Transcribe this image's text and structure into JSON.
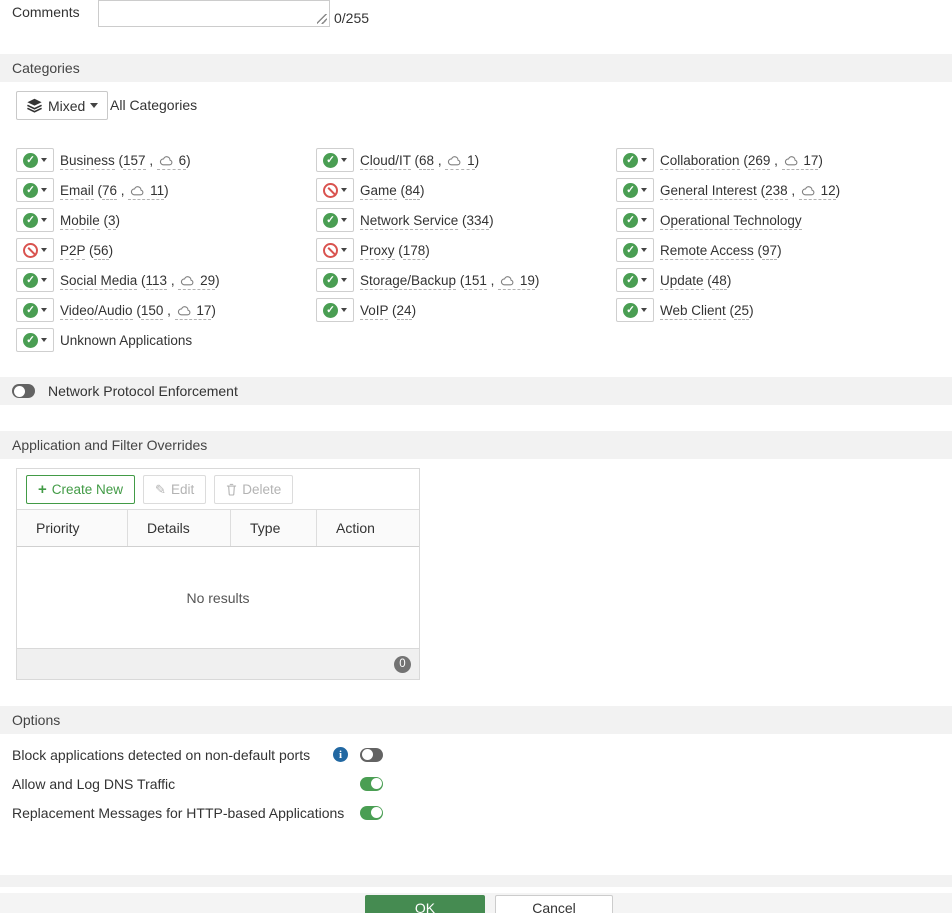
{
  "comments": {
    "label": "Comments",
    "value": "",
    "counter": "0/255"
  },
  "categories": {
    "header": "Categories",
    "mixed_label": "Mixed",
    "all_label": "All Categories",
    "items": [
      {
        "name": "Business",
        "status": "allow",
        "count": 157,
        "cloud": 6,
        "col": 0
      },
      {
        "name": "Email",
        "status": "allow",
        "count": 76,
        "cloud": 11,
        "col": 0
      },
      {
        "name": "Mobile",
        "status": "allow",
        "count": 3,
        "cloud": null,
        "col": 0
      },
      {
        "name": "P2P",
        "status": "block",
        "count": 56,
        "cloud": null,
        "col": 0
      },
      {
        "name": "Social Media",
        "status": "allow",
        "count": 113,
        "cloud": 29,
        "col": 0
      },
      {
        "name": "Video/Audio",
        "status": "allow",
        "count": 150,
        "cloud": 17,
        "col": 0
      },
      {
        "name": "Unknown Applications",
        "status": "allow",
        "count": null,
        "cloud": null,
        "col": 0,
        "plain": true
      },
      {
        "name": "Cloud/IT",
        "status": "allow",
        "count": 68,
        "cloud": 1,
        "col": 1
      },
      {
        "name": "Game",
        "status": "block",
        "count": 84,
        "cloud": null,
        "col": 1
      },
      {
        "name": "Network Service",
        "status": "allow",
        "count": 334,
        "cloud": null,
        "col": 1
      },
      {
        "name": "Proxy",
        "status": "block",
        "count": 178,
        "cloud": null,
        "col": 1
      },
      {
        "name": "Storage/Backup",
        "status": "allow",
        "count": 151,
        "cloud": 19,
        "col": 1
      },
      {
        "name": "VoIP",
        "status": "allow",
        "count": 24,
        "cloud": null,
        "col": 1
      },
      {
        "name": "Collaboration",
        "status": "allow",
        "count": 269,
        "cloud": 17,
        "col": 2
      },
      {
        "name": "General Interest",
        "status": "allow",
        "count": 238,
        "cloud": 12,
        "col": 2
      },
      {
        "name": "Operational Technology",
        "status": "allow",
        "count": null,
        "cloud": null,
        "col": 2
      },
      {
        "name": "Remote Access",
        "status": "allow",
        "count": 97,
        "cloud": null,
        "col": 2
      },
      {
        "name": "Update",
        "status": "allow",
        "count": 48,
        "cloud": null,
        "col": 2
      },
      {
        "name": "Web Client",
        "status": "allow",
        "count": 25,
        "cloud": null,
        "col": 2
      }
    ]
  },
  "network_protocol": {
    "label": "Network Protocol Enforcement",
    "enabled": false
  },
  "overrides": {
    "header": "Application and Filter Overrides",
    "toolbar": {
      "create_label": "Create New",
      "edit_label": "Edit",
      "delete_label": "Delete"
    },
    "columns": [
      "Priority",
      "Details",
      "Type",
      "Action"
    ],
    "empty_text": "No results",
    "count_badge": "0"
  },
  "options": {
    "header": "Options",
    "rows": [
      {
        "label": "Block applications detected on non-default ports",
        "info": true,
        "enabled": false
      },
      {
        "label": "Allow and Log DNS Traffic",
        "info": false,
        "enabled": true
      },
      {
        "label": "Replacement Messages for HTTP-based Applications",
        "info": false,
        "enabled": true
      }
    ]
  },
  "footer": {
    "ok_label": "OK",
    "cancel_label": "Cancel"
  },
  "colors": {
    "accent-green": "#4a9e53",
    "status-red": "#d9534f",
    "info-blue": "#2268a2",
    "ok-green": "#458b51",
    "create-green": "#429b46",
    "section-bg": "#f2f2f2",
    "toggle-off": "#636363",
    "badge-gray": "#737373"
  }
}
